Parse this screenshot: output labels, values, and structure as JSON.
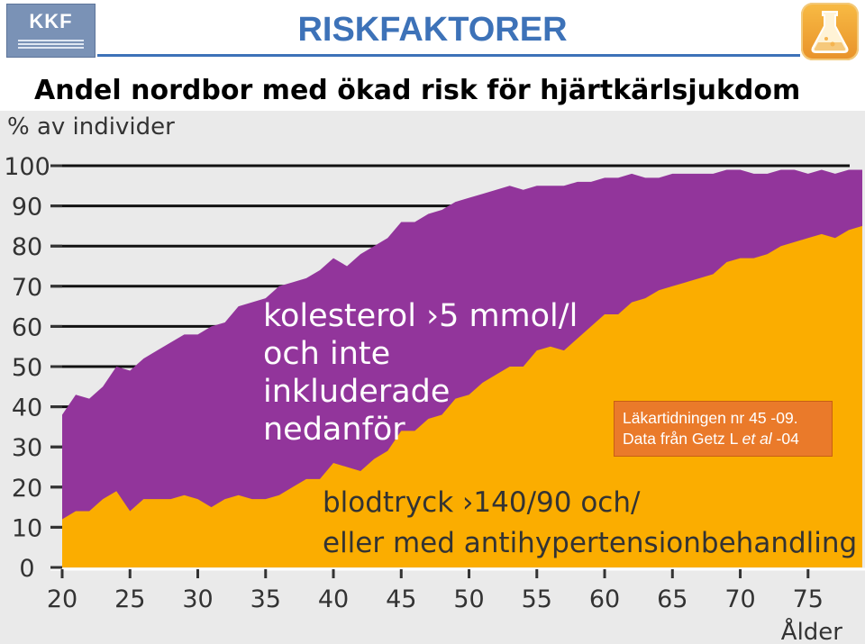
{
  "header": {
    "logo_text": "KKF",
    "title": "RISKFAKTORER",
    "subtitle": "Andel nordbor med ökad risk för hjärtkärlsjukdom",
    "logo_icon": "flask-icon"
  },
  "source_note": {
    "line1": "Läkartidningen  nr 45 -09.",
    "line2_pre": "Data från Getz L ",
    "line2_em": "et al",
    "line2_post": " -04"
  },
  "chart_data": {
    "type": "area",
    "ylabel": "% av individer",
    "xlabel": "Ålder",
    "xlim": [
      20,
      79
    ],
    "ylim": [
      0,
      100
    ],
    "yticks": [
      0,
      10,
      20,
      30,
      40,
      50,
      60,
      70,
      80,
      90,
      100
    ],
    "xticks": [
      20,
      25,
      30,
      35,
      40,
      45,
      50,
      55,
      60,
      65,
      70,
      75
    ],
    "colors": {
      "background": "#eaeaea",
      "bloodpressure": "#fbad00",
      "cholesterol": "#92359b",
      "tick_text": "#333333",
      "label_text": "#ffffff",
      "label_text_dark": "#333333"
    },
    "x": [
      20,
      21,
      22,
      23,
      24,
      25,
      26,
      27,
      28,
      29,
      30,
      31,
      32,
      33,
      34,
      35,
      36,
      37,
      38,
      39,
      40,
      41,
      42,
      43,
      44,
      45,
      46,
      47,
      48,
      49,
      50,
      51,
      52,
      53,
      54,
      55,
      56,
      57,
      58,
      59,
      60,
      61,
      62,
      63,
      64,
      65,
      66,
      67,
      68,
      69,
      70,
      71,
      72,
      73,
      74,
      75,
      76,
      77,
      78,
      79
    ],
    "series": [
      {
        "name": "blodtryck >140/90 och/\neller med antihypertensionbehandling",
        "values": [
          12,
          14,
          14,
          17,
          19,
          14,
          17,
          17,
          17,
          18,
          17,
          15,
          17,
          18,
          17,
          17,
          18,
          20,
          22,
          22,
          26,
          25,
          24,
          27,
          29,
          34,
          34,
          37,
          38,
          42,
          43,
          46,
          48,
          50,
          50,
          54,
          55,
          54,
          57,
          60,
          63,
          63,
          66,
          67,
          69,
          70,
          71,
          72,
          73,
          76,
          77,
          77,
          78,
          80,
          81,
          82,
          83,
          82,
          84,
          85
        ],
        "label_lines": [
          "blodtryck ›140/90 och/",
          "eller med antihypertensionbehandling"
        ]
      },
      {
        "name": "kolesterol >5 mmol/l\noch inte\ninkluderade\nnedanför",
        "values": [
          38,
          43,
          42,
          45,
          50,
          49,
          52,
          54,
          56,
          58,
          58,
          60,
          61,
          65,
          66,
          67,
          70,
          71,
          72,
          74,
          77,
          75,
          78,
          80,
          82,
          86,
          86,
          88,
          89,
          91,
          92,
          93,
          94,
          95,
          94,
          95,
          95,
          95,
          96,
          96,
          97,
          97,
          98,
          97,
          97,
          98,
          98,
          98,
          98,
          99,
          99,
          98,
          98,
          99,
          99,
          98,
          99,
          98,
          99,
          99
        ],
        "label_lines": [
          "kolesterol ›5 mmol/l",
          "och inte",
          "inkluderade",
          "nedanför"
        ]
      }
    ]
  }
}
